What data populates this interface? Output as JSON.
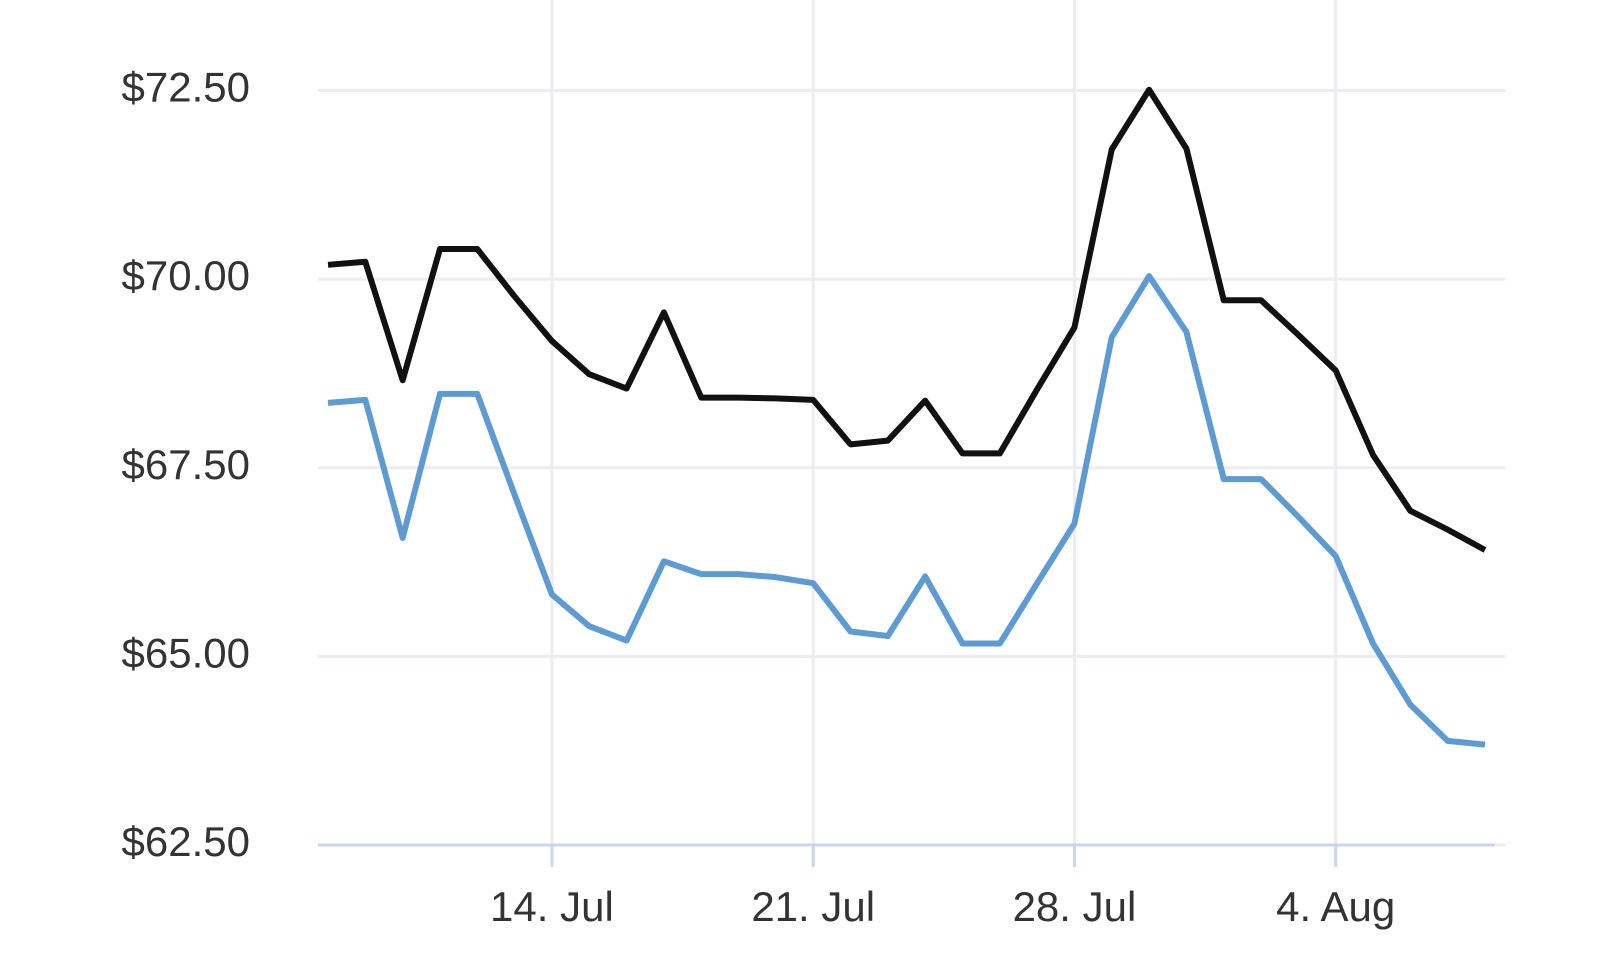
{
  "chart_data": {
    "type": "line",
    "x": [
      "07-08",
      "07-09",
      "07-10",
      "07-11",
      "07-12",
      "07-13",
      "07-14",
      "07-15",
      "07-16",
      "07-17",
      "07-18",
      "07-19",
      "07-20",
      "07-21",
      "07-22",
      "07-23",
      "07-24",
      "07-25",
      "07-26",
      "07-27",
      "07-28",
      "07-29",
      "07-30",
      "07-31",
      "08-01",
      "08-02",
      "08-03",
      "08-04",
      "08-05",
      "08-06",
      "08-07",
      "08-08"
    ],
    "series": [
      {
        "color": "#111111",
        "values": [
          70.19,
          70.23,
          68.66,
          70.4,
          70.4,
          69.77,
          69.18,
          68.74,
          68.55,
          69.56,
          68.43,
          68.43,
          68.42,
          68.4,
          67.81,
          67.86,
          68.39,
          67.69,
          67.69,
          68.54,
          69.36,
          71.72,
          72.51,
          71.73,
          69.72,
          69.72,
          69.26,
          68.79,
          67.67,
          66.93,
          66.68,
          66.41
        ]
      },
      {
        "color": "#5e9bd2",
        "values": [
          68.36,
          68.4,
          66.57,
          68.48,
          68.48,
          67.14,
          65.82,
          65.4,
          65.21,
          66.26,
          66.09,
          66.09,
          66.05,
          65.97,
          65.33,
          65.27,
          66.06,
          65.17,
          65.17,
          65.97,
          66.76,
          69.23,
          70.04,
          69.3,
          67.35,
          67.35,
          66.85,
          66.33,
          65.17,
          64.36,
          63.88,
          63.83
        ]
      }
    ],
    "xlim": [
      "07-08",
      "08-08"
    ],
    "xticks": [
      {
        "value": "07-14",
        "label": "14. Jul"
      },
      {
        "value": "07-21",
        "label": "21. Jul"
      },
      {
        "value": "07-28",
        "label": "28. Jul"
      },
      {
        "value": "08-04",
        "label": "4. Aug"
      }
    ],
    "ylim": [
      62.5,
      73.7
    ],
    "yticks": [
      {
        "value": 62.5,
        "label": "$62.50"
      },
      {
        "value": 65,
        "label": "$65.00"
      },
      {
        "value": 67.5,
        "label": "$67.50"
      },
      {
        "value": 70,
        "label": "$70.00"
      },
      {
        "value": 72.5,
        "label": "$72.50"
      }
    ],
    "grid": true
  }
}
